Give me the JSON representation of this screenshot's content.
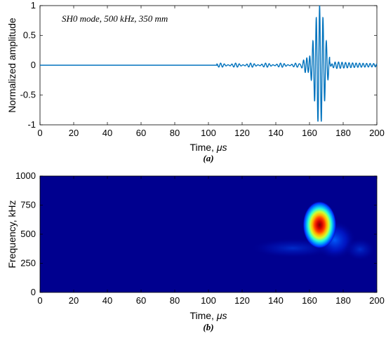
{
  "chart_data": [
    {
      "type": "line",
      "panel_label": "(a)",
      "annotation": "SH0 mode, 500 kHz, 350 mm",
      "xlabel_text": "Time, ",
      "xlabel_unit": "μs",
      "ylabel": "Normalized amplitude",
      "xlim": [
        0,
        200
      ],
      "ylim": [
        -1,
        1
      ],
      "xticks": [
        "0",
        "20",
        "40",
        "60",
        "80",
        "100",
        "120",
        "140",
        "160",
        "180",
        "200"
      ],
      "yticks": [
        "-1",
        "-0.5",
        "0",
        "0.5",
        "1"
      ],
      "series": [
        {
          "color": "#0072BD",
          "description": "Flat until ~105 μs, weak ripple (|amp|<0.05) 105–155 μs, main wave packet centred at 166 μs reaching ±1, small tail to 200 μs",
          "packet_center": 166,
          "packet_peak": 1.0,
          "carrier_frequency_kHz": 500
        }
      ]
    },
    {
      "type": "heatmap",
      "panel_label": "(b)",
      "xlabel_text": "Time, ",
      "xlabel_unit": "μs",
      "ylabel": "Frequency, kHz",
      "xlim": [
        0,
        200
      ],
      "ylim": [
        0,
        1000
      ],
      "xticks": [
        "0",
        "20",
        "40",
        "60",
        "80",
        "100",
        "120",
        "140",
        "160",
        "180",
        "200"
      ],
      "yticks": [
        "0",
        "250",
        "500",
        "750",
        "1000"
      ],
      "colormap": "jet",
      "peak": {
        "time": 166,
        "frequency": 580,
        "value": 1.0
      },
      "secondary_regions": [
        {
          "time": 175,
          "frequency": 450,
          "value": 0.12
        },
        {
          "time": 150,
          "frequency": 380,
          "value": 0.05
        },
        {
          "time": 190,
          "frequency": 370,
          "value": 0.06
        }
      ],
      "colors": {
        "background": "#00008f"
      }
    }
  ]
}
